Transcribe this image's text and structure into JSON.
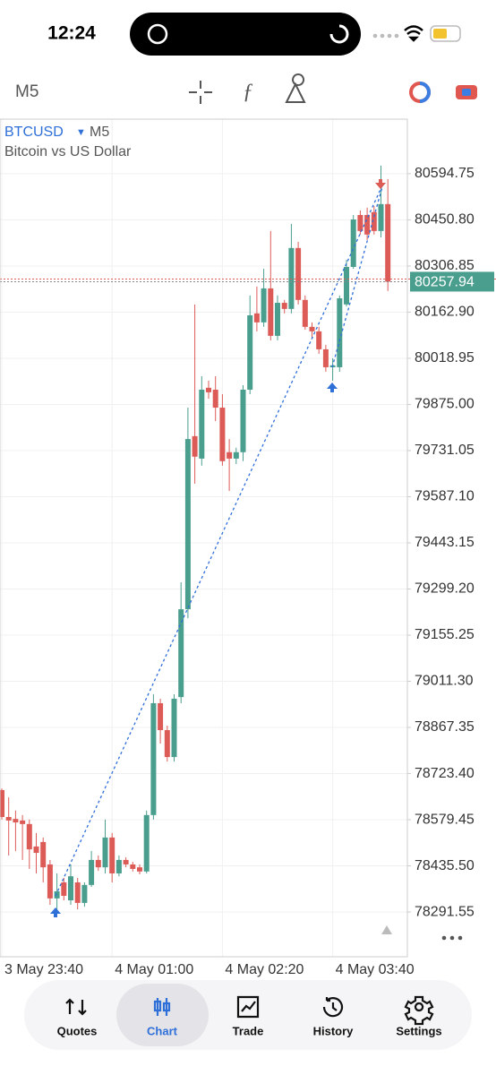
{
  "status_bar": {
    "time": "12:24"
  },
  "toolbar": {
    "timeframe": "M5"
  },
  "chart_data": {
    "type": "candlestick",
    "symbol": "BTCUSD",
    "timeframe": "M5",
    "subtitle": "Bitcoin vs US Dollar",
    "categories": [
      "3 May 23:40",
      null,
      null,
      null,
      null,
      null,
      null,
      null,
      null,
      null,
      null,
      null,
      null,
      null,
      null,
      null,
      "4 May 01:00",
      null,
      null,
      null,
      null,
      null,
      null,
      null,
      null,
      null,
      null,
      null,
      null,
      null,
      null,
      null,
      "4 May 02:20",
      null,
      null,
      null,
      null,
      null,
      null,
      null,
      null,
      null,
      null,
      null,
      null,
      null,
      null,
      null,
      "4 May 03:40",
      null,
      null,
      null,
      null,
      null,
      null,
      null,
      null
    ],
    "open": [
      78672,
      78588,
      78582,
      78577,
      78566,
      78496,
      78510,
      78440,
      78334,
      78384,
      78328,
      78384,
      78320,
      78376,
      78454,
      78431,
      78524,
      78412,
      78454,
      78440,
      78431,
      78418,
      78594,
      78943,
      78859,
      78775,
      78962,
      79236,
      79776,
      79706,
      79927,
      79921,
      79865,
      79726,
      79706,
      79726,
      79921,
      80159,
      80131,
      80237,
      80089,
      80192,
      80173,
      80363,
      80201,
      80117,
      80103,
      80047,
      79991,
      79991,
      80187,
      80304,
      80466,
      80466,
      80475,
      80416,
      80500
    ],
    "high": [
      78677,
      78649,
      78608,
      78594,
      78580,
      78538,
      78524,
      78454,
      78412,
      78398,
      78440,
      78398,
      78384,
      78482,
      78468,
      78580,
      78538,
      78468,
      78462,
      78448,
      78440,
      78608,
      78971,
      78957,
      78873,
      78971,
      79320,
      79865,
      80187,
      79963,
      79949,
      79963,
      79907,
      79767,
      79740,
      79935,
      80215,
      80243,
      80298,
      80416,
      80215,
      80201,
      80438,
      80382,
      80215,
      80131,
      80117,
      80061,
      80019,
      80215,
      80326,
      80466,
      80480,
      80489,
      80494,
      80620,
      80578
    ],
    "low": [
      78580,
      78468,
      78482,
      78454,
      78426,
      78412,
      78384,
      78314,
      78286,
      78328,
      78314,
      78300,
      78308,
      78370,
      78420,
      78412,
      78384,
      78403,
      78431,
      78418,
      78409,
      78412,
      78580,
      78817,
      78761,
      78761,
      78943,
      79208,
      79628,
      79684,
      79893,
      79823,
      79684,
      79605,
      79689,
      79698,
      79907,
      80103,
      80117,
      80075,
      80075,
      80159,
      80159,
      80187,
      80108,
      80080,
      80033,
      79977,
      79949,
      79977,
      80181,
      80298,
      80405,
      80388,
      80405,
      80396,
      80229
    ],
    "close": [
      78588,
      78577,
      78571,
      78566,
      78487,
      78476,
      78431,
      78334,
      78356,
      78342,
      78403,
      78320,
      78376,
      78454,
      78431,
      78524,
      78412,
      78454,
      78440,
      78426,
      78418,
      78594,
      78943,
      78859,
      78775,
      78957,
      79236,
      79767,
      79712,
      79921,
      79913,
      79865,
      79698,
      79706,
      79726,
      79921,
      80153,
      80131,
      80237,
      80089,
      80192,
      80173,
      80363,
      80201,
      80117,
      80103,
      80047,
      79991,
      79997,
      80206,
      80304,
      80452,
      80416,
      80405,
      80416,
      80500,
      80258
    ],
    "up_color": "#4a9e8e",
    "down_color": "#dc5b57",
    "ylim": [
      78152,
      80765
    ],
    "yticks": [
      80594.75,
      {
        "value": 80450.8,
        "label": "80450.80"
      },
      80306.85,
      {
        "value": 80162.9,
        "label": "80162.90"
      },
      80018.95,
      {
        "value": 79875,
        "label": "79875.00"
      },
      79731.05,
      {
        "value": 79587.1,
        "label": "79587.10"
      },
      79443.15,
      {
        "value": 79299.2,
        "label": "79299.20"
      },
      79155.25,
      {
        "value": 79011.3,
        "label": "79011.30"
      },
      78867.35,
      {
        "value": 78723.4,
        "label": "78723.40"
      },
      78579.45,
      {
        "value": 78435.5,
        "label": "78435.50"
      },
      78291.55
    ],
    "current_price": 80257.94,
    "grid": true
  },
  "nav": {
    "tabs": [
      "Quotes",
      "Chart",
      "Trade",
      "History",
      "Settings"
    ],
    "active": 1
  }
}
